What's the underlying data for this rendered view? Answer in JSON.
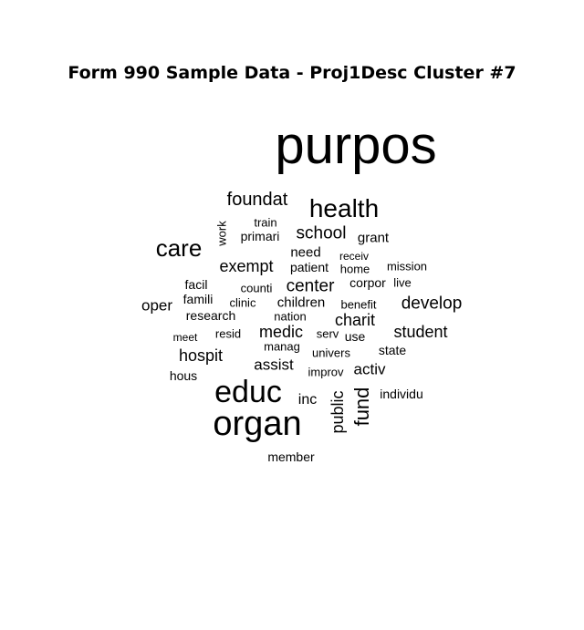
{
  "chart_data": {
    "type": "wordcloud",
    "title": "Form 990 Sample Data - Proj1Desc Cluster #7",
    "words": [
      {
        "text": "purpos"
      },
      {
        "text": "foundat"
      },
      {
        "text": "health"
      },
      {
        "text": "work"
      },
      {
        "text": "train"
      },
      {
        "text": "primari"
      },
      {
        "text": "school"
      },
      {
        "text": "grant"
      },
      {
        "text": "care"
      },
      {
        "text": "need"
      },
      {
        "text": "receiv"
      },
      {
        "text": "exempt"
      },
      {
        "text": "patient"
      },
      {
        "text": "home"
      },
      {
        "text": "mission"
      },
      {
        "text": "facil"
      },
      {
        "text": "counti"
      },
      {
        "text": "center"
      },
      {
        "text": "corpor"
      },
      {
        "text": "live"
      },
      {
        "text": "oper"
      },
      {
        "text": "famili"
      },
      {
        "text": "clinic"
      },
      {
        "text": "children"
      },
      {
        "text": "benefit"
      },
      {
        "text": "develop"
      },
      {
        "text": "research"
      },
      {
        "text": "nation"
      },
      {
        "text": "charit"
      },
      {
        "text": "meet"
      },
      {
        "text": "resid"
      },
      {
        "text": "medic"
      },
      {
        "text": "serv"
      },
      {
        "text": "use"
      },
      {
        "text": "student"
      },
      {
        "text": "manag"
      },
      {
        "text": "hospit"
      },
      {
        "text": "univers"
      },
      {
        "text": "state"
      },
      {
        "text": "assist"
      },
      {
        "text": "hous"
      },
      {
        "text": "improv"
      },
      {
        "text": "activ"
      },
      {
        "text": "educ"
      },
      {
        "text": "inc"
      },
      {
        "text": "public"
      },
      {
        "text": "fund"
      },
      {
        "text": "individu"
      },
      {
        "text": "organ"
      },
      {
        "text": "member"
      }
    ]
  }
}
